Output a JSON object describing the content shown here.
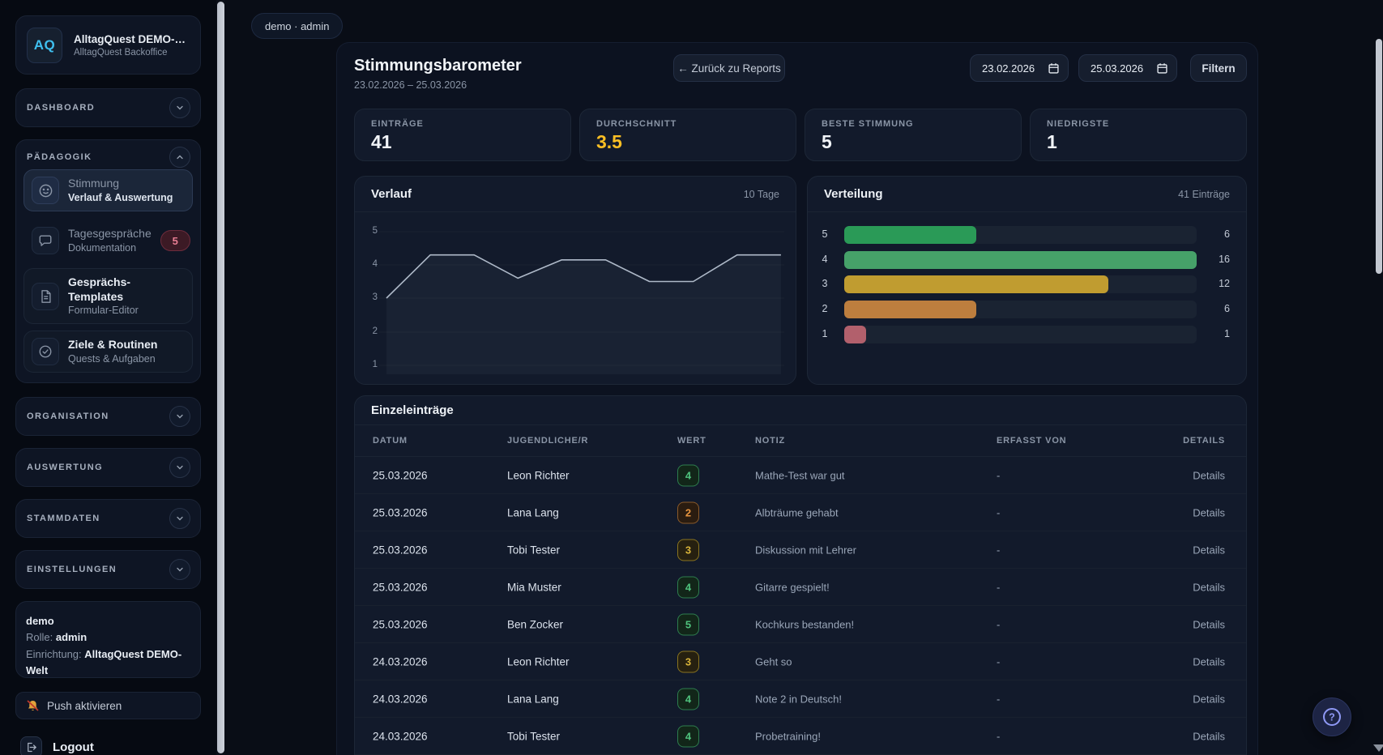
{
  "app": {
    "logo": "AQ",
    "title": "AlltagQuest DEMO-…",
    "subtitle": "AlltagQuest Backoffice"
  },
  "sidebar": {
    "sections_top": [
      {
        "label": "DASHBOARD",
        "chevron": "down"
      }
    ],
    "paedagogik": {
      "label": "PÄDAGOGIK",
      "chevron": "up",
      "items": [
        {
          "icon": "smiley-icon",
          "title": "Stimmung",
          "subtitle": "Verlauf & Auswertung",
          "style": "active"
        },
        {
          "icon": "chat-icon",
          "title": "Tagesgespräche",
          "subtitle": "Dokumentation",
          "style": "plain",
          "badge": "5"
        },
        {
          "icon": "document-icon",
          "title": "Gesprächs-Templates",
          "subtitle": "Formular-Editor",
          "style": "boxed"
        },
        {
          "icon": "target-icon",
          "title": "Ziele & Routinen",
          "subtitle": "Quests & Aufgaben",
          "style": "boxed"
        }
      ]
    },
    "sections_bottom": [
      {
        "label": "ORGANISATION",
        "chevron": "down"
      },
      {
        "label": "AUSWERTUNG",
        "chevron": "down"
      },
      {
        "label": "STAMMDATEN",
        "chevron": "down"
      },
      {
        "label": "EINSTELLUNGEN",
        "chevron": "down"
      }
    ],
    "user": {
      "name": "demo",
      "role_label": "Rolle:",
      "role": "admin",
      "org_label": "Einrichtung:",
      "org": "AlltagQuest DEMO-Welt"
    },
    "push_label": "Push aktivieren",
    "logout_label": "Logout"
  },
  "header": {
    "chip": "demo · admin",
    "title": "Stimmungsbarometer",
    "date_range": "23.02.2026 – 25.03.2026",
    "back_button": "← Zurück zu Reports",
    "date_from": "23.02.2026",
    "date_to": "25.03.2026",
    "filter_button": "Filtern"
  },
  "stats": [
    {
      "label": "EINTRÄGE",
      "value": "41",
      "color": "#f1f4f8"
    },
    {
      "label": "DURCHSCHNITT",
      "value": "3.5",
      "color": "#fbbf24"
    },
    {
      "label": "BESTE STIMMUNG",
      "value": "5",
      "color": "#f1f4f8"
    },
    {
      "label": "NIEDRIGSTE",
      "value": "1",
      "color": "#f1f4f8"
    }
  ],
  "chart_data": [
    {
      "type": "line",
      "title": "Verlauf",
      "badge": "10 Tage",
      "x": [
        1,
        2,
        3,
        4,
        5,
        6,
        7,
        8,
        9,
        10
      ],
      "values": [
        3.0,
        4.3,
        4.3,
        3.6,
        4.15,
        4.15,
        3.5,
        3.5,
        4.3,
        4.3
      ],
      "ylim": [
        1,
        5
      ],
      "yticks": [
        5,
        4,
        3,
        2,
        1
      ],
      "grid": true,
      "line_color": "#aeb9c8",
      "area_fill": "rgba(160,175,195,0.06)"
    },
    {
      "type": "bar",
      "title": "Verteilung",
      "badge": "41 Einträge",
      "orientation": "horizontal",
      "categories": [
        "5",
        "4",
        "3",
        "2",
        "1"
      ],
      "values": [
        6,
        16,
        12,
        6,
        1
      ],
      "xmax": 16,
      "colors": [
        "#2a9a57",
        "#46a169",
        "#c09c30",
        "#bd7e3e",
        "#b2606c"
      ]
    }
  ],
  "table": {
    "title": "Einzeleinträge",
    "columns": {
      "date": "DATUM",
      "name": "JUGENDLICHE/R",
      "wert": "WERT",
      "notiz": "NOTIZ",
      "erfasst": "ERFASST VON",
      "details": "DETAILS"
    },
    "rows": [
      {
        "date": "25.03.2026",
        "name": "Leon Richter",
        "value": "4",
        "value_color": "green",
        "note": "Mathe-Test war gut",
        "erfasst": "-",
        "details": "Details"
      },
      {
        "date": "25.03.2026",
        "name": "Lana Lang",
        "value": "2",
        "value_color": "orange",
        "note": "Albträume gehabt",
        "erfasst": "-",
        "details": "Details"
      },
      {
        "date": "25.03.2026",
        "name": "Tobi Tester",
        "value": "3",
        "value_color": "yellow",
        "note": "Diskussion mit Lehrer",
        "erfasst": "-",
        "details": "Details"
      },
      {
        "date": "25.03.2026",
        "name": "Mia Muster",
        "value": "4",
        "value_color": "green",
        "note": "Gitarre gespielt!",
        "erfasst": "-",
        "details": "Details"
      },
      {
        "date": "25.03.2026",
        "name": "Ben Zocker",
        "value": "5",
        "value_color": "green",
        "note": "Kochkurs bestanden!",
        "erfasst": "-",
        "details": "Details"
      },
      {
        "date": "24.03.2026",
        "name": "Leon Richter",
        "value": "3",
        "value_color": "yellow",
        "note": "Geht so",
        "erfasst": "-",
        "details": "Details"
      },
      {
        "date": "24.03.2026",
        "name": "Lana Lang",
        "value": "4",
        "value_color": "green",
        "note": "Note 2 in Deutsch!",
        "erfasst": "-",
        "details": "Details"
      },
      {
        "date": "24.03.2026",
        "name": "Tobi Tester",
        "value": "4",
        "value_color": "green",
        "note": "Probetraining!",
        "erfasst": "-",
        "details": "Details"
      }
    ]
  },
  "help_button": {
    "glyph": "?"
  },
  "colors": {
    "page_bg": "#090d16",
    "sidebar_bg": "#060a12",
    "card_bg": "#121a2b",
    "accent_cyan": "#3fc0f0",
    "amber": "#fbbf24",
    "badge_green": "#4fc27d",
    "badge_yellow": "#d9b43a",
    "badge_orange": "#e8953f",
    "notify_badge": "#e87e93",
    "scrollbar": "#c3c8d1"
  }
}
